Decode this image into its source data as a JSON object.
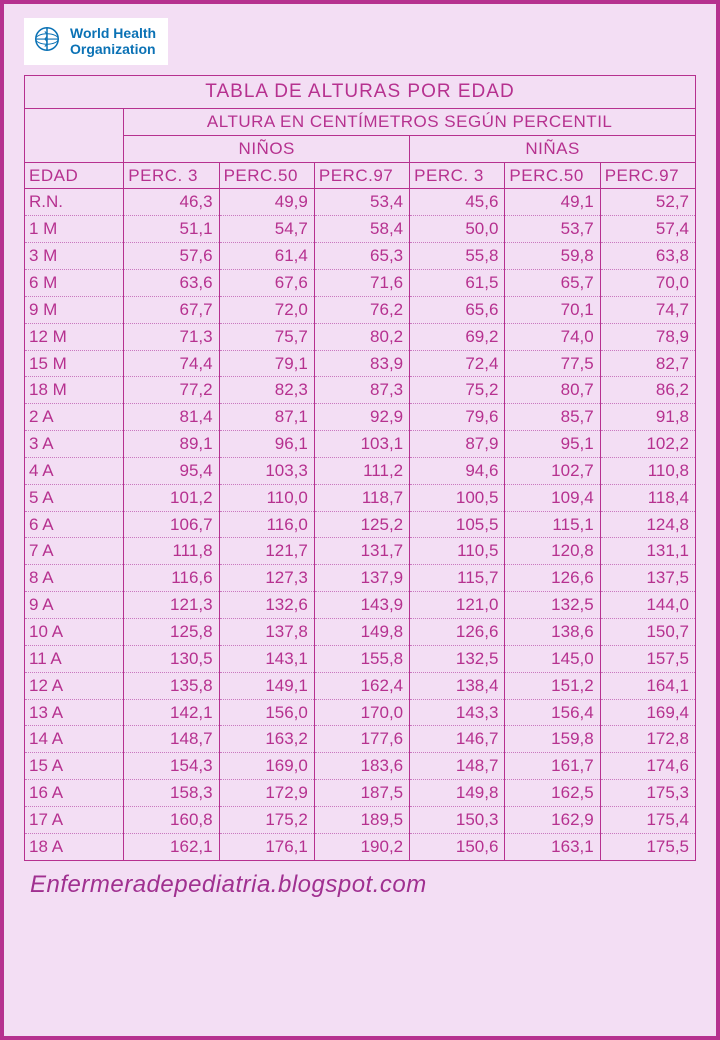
{
  "logo": {
    "line1": "World Health",
    "line2": "Organization",
    "brand_color": "#0b72b5"
  },
  "colors": {
    "page_bg": "#f3def4",
    "border": "#b6318f",
    "text": "#b6318f",
    "dotted": "#c978bf",
    "logo_bg": "#ffffff"
  },
  "typography": {
    "body_font": "Comic Sans MS / cursive",
    "title_fontsize": 19,
    "cell_fontsize": 17,
    "footer_fontsize": 24
  },
  "table": {
    "title": "TABLA DE ALTURAS POR EDAD",
    "subtitle": "ALTURA EN CENTÍMETROS SEGÚN PERCENTIL",
    "group_boys": "NIÑOS",
    "group_girls": "NIÑAS",
    "col_age": "EDAD",
    "col_p3": "PERC. 3",
    "col_p50": "PERC.50",
    "col_p97": "PERC.97",
    "rows": [
      {
        "age": "R.N.",
        "b3": "46,3",
        "b50": "49,9",
        "b97": "53,4",
        "g3": "45,6",
        "g50": "49,1",
        "g97": "52,7"
      },
      {
        "age": "1 M",
        "b3": "51,1",
        "b50": "54,7",
        "b97": "58,4",
        "g3": "50,0",
        "g50": "53,7",
        "g97": "57,4"
      },
      {
        "age": "3 M",
        "b3": "57,6",
        "b50": "61,4",
        "b97": "65,3",
        "g3": "55,8",
        "g50": "59,8",
        "g97": "63,8"
      },
      {
        "age": "6 M",
        "b3": "63,6",
        "b50": "67,6",
        "b97": "71,6",
        "g3": "61,5",
        "g50": "65,7",
        "g97": "70,0"
      },
      {
        "age": "9 M",
        "b3": "67,7",
        "b50": "72,0",
        "b97": "76,2",
        "g3": "65,6",
        "g50": "70,1",
        "g97": "74,7"
      },
      {
        "age": "12 M",
        "b3": "71,3",
        "b50": "75,7",
        "b97": "80,2",
        "g3": "69,2",
        "g50": "74,0",
        "g97": "78,9"
      },
      {
        "age": "15 M",
        "b3": "74,4",
        "b50": "79,1",
        "b97": "83,9",
        "g3": "72,4",
        "g50": "77,5",
        "g97": "82,7"
      },
      {
        "age": "18 M",
        "b3": "77,2",
        "b50": "82,3",
        "b97": "87,3",
        "g3": "75,2",
        "g50": "80,7",
        "g97": "86,2"
      },
      {
        "age": "2 A",
        "b3": "81,4",
        "b50": "87,1",
        "b97": "92,9",
        "g3": "79,6",
        "g50": "85,7",
        "g97": "91,8"
      },
      {
        "age": "3 A",
        "b3": "89,1",
        "b50": "96,1",
        "b97": "103,1",
        "g3": "87,9",
        "g50": "95,1",
        "g97": "102,2"
      },
      {
        "age": "4 A",
        "b3": "95,4",
        "b50": "103,3",
        "b97": "111,2",
        "g3": "94,6",
        "g50": "102,7",
        "g97": "110,8"
      },
      {
        "age": "5 A",
        "b3": "101,2",
        "b50": "110,0",
        "b97": "118,7",
        "g3": "100,5",
        "g50": "109,4",
        "g97": "118,4"
      },
      {
        "age": "6 A",
        "b3": "106,7",
        "b50": "116,0",
        "b97": "125,2",
        "g3": "105,5",
        "g50": "115,1",
        "g97": "124,8"
      },
      {
        "age": "7 A",
        "b3": "111,8",
        "b50": "121,7",
        "b97": "131,7",
        "g3": "110,5",
        "g50": "120,8",
        "g97": "131,1"
      },
      {
        "age": "8 A",
        "b3": "116,6",
        "b50": "127,3",
        "b97": "137,9",
        "g3": "115,7",
        "g50": "126,6",
        "g97": "137,5"
      },
      {
        "age": "9 A",
        "b3": "121,3",
        "b50": "132,6",
        "b97": "143,9",
        "g3": "121,0",
        "g50": "132,5",
        "g97": "144,0"
      },
      {
        "age": "10 A",
        "b3": "125,8",
        "b50": "137,8",
        "b97": "149,8",
        "g3": "126,6",
        "g50": "138,6",
        "g97": "150,7"
      },
      {
        "age": "11 A",
        "b3": "130,5",
        "b50": "143,1",
        "b97": "155,8",
        "g3": "132,5",
        "g50": "145,0",
        "g97": "157,5"
      },
      {
        "age": "12 A",
        "b3": "135,8",
        "b50": "149,1",
        "b97": "162,4",
        "g3": "138,4",
        "g50": "151,2",
        "g97": "164,1"
      },
      {
        "age": "13 A",
        "b3": "142,1",
        "b50": "156,0",
        "b97": "170,0",
        "g3": "143,3",
        "g50": "156,4",
        "g97": "169,4"
      },
      {
        "age": "14 A",
        "b3": "148,7",
        "b50": "163,2",
        "b97": "177,6",
        "g3": "146,7",
        "g50": "159,8",
        "g97": "172,8"
      },
      {
        "age": "15 A",
        "b3": "154,3",
        "b50": "169,0",
        "b97": "183,6",
        "g3": "148,7",
        "g50": "161,7",
        "g97": "174,6"
      },
      {
        "age": "16 A",
        "b3": "158,3",
        "b50": "172,9",
        "b97": "187,5",
        "g3": "149,8",
        "g50": "162,5",
        "g97": "175,3"
      },
      {
        "age": "17 A",
        "b3": "160,8",
        "b50": "175,2",
        "b97": "189,5",
        "g3": "150,3",
        "g50": "162,9",
        "g97": "175,4"
      },
      {
        "age": "18 A",
        "b3": "162,1",
        "b50": "176,1",
        "b97": "190,2",
        "g3": "150,6",
        "g50": "163,1",
        "g97": "175,5"
      }
    ]
  },
  "footer": "Enfermeradepediatria.blogspot.com"
}
